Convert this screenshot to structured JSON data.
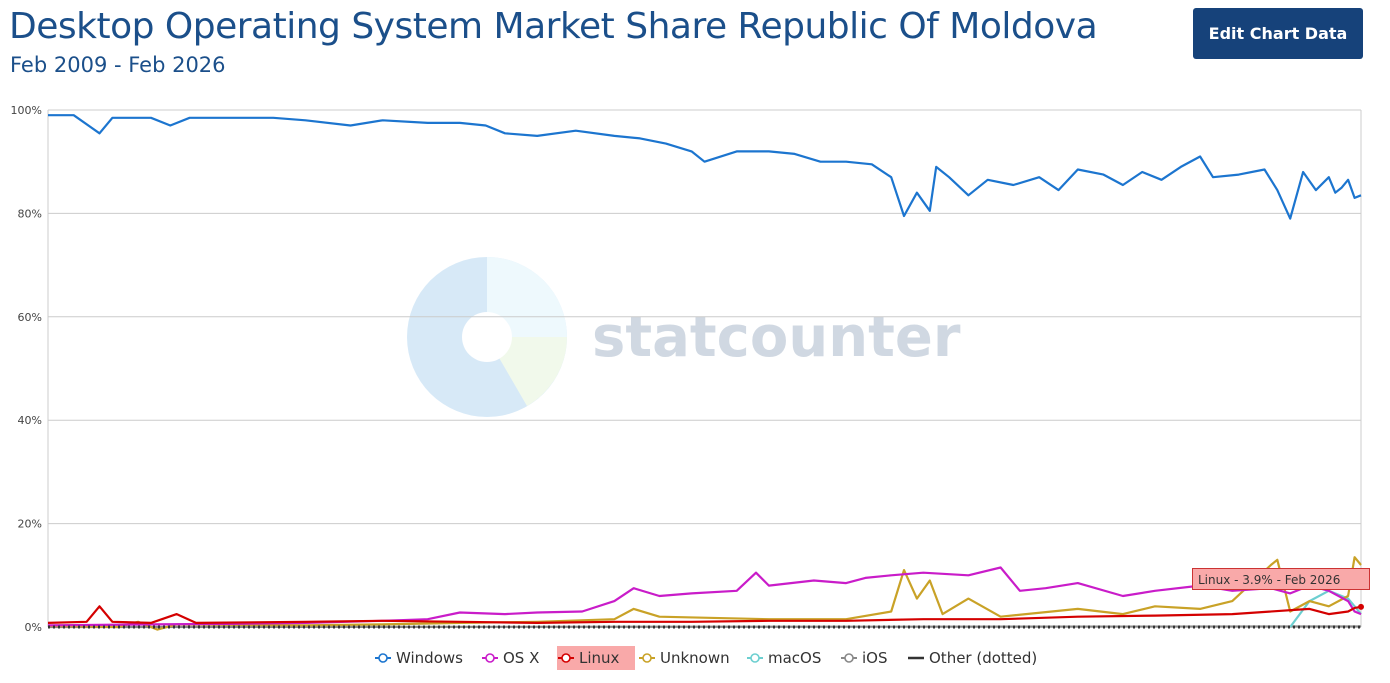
{
  "header": {
    "title": "Desktop Operating System Market Share Republic Of Moldova",
    "subtitle": "Feb 2009 - Feb 2026",
    "edit_button_label": "Edit Chart Data"
  },
  "tooltip": {
    "text": "Linux - 3.9% - Feb 2026"
  },
  "watermark": {
    "text": "statcounter"
  },
  "colors": {
    "windows": "#1c75cf",
    "osx": "#c91cc9",
    "linux": "#d40000",
    "unknown": "#c9a227",
    "macos": "#6ccfd0",
    "ios": "#888888",
    "other": "#333333",
    "grid": "#cccccc",
    "title": "#1b4f8a"
  },
  "chart_data": {
    "type": "line",
    "x_start": "2009-02",
    "x_end": "2026-02",
    "ylim": [
      0,
      100
    ],
    "y_ticks": [
      "0%",
      "20%",
      "40%",
      "60%",
      "80%",
      "100%"
    ],
    "grid": true,
    "legend_position": "bottom",
    "highlighted_series": "Linux",
    "series": [
      {
        "name": "Windows",
        "key": "windows",
        "points": [
          [
            "2009-02",
            99
          ],
          [
            "2009-06",
            99
          ],
          [
            "2009-10",
            95.5
          ],
          [
            "2009-12",
            98.5
          ],
          [
            "2010-06",
            98.5
          ],
          [
            "2010-09",
            97
          ],
          [
            "2010-12",
            98.5
          ],
          [
            "2011-06",
            98.5
          ],
          [
            "2012-01",
            98.5
          ],
          [
            "2012-06",
            98
          ],
          [
            "2013-01",
            97
          ],
          [
            "2013-06",
            98
          ],
          [
            "2014-01",
            97.5
          ],
          [
            "2014-06",
            97.5
          ],
          [
            "2014-10",
            97
          ],
          [
            "2015-01",
            95.5
          ],
          [
            "2015-06",
            95
          ],
          [
            "2015-12",
            96
          ],
          [
            "2016-06",
            95
          ],
          [
            "2016-10",
            94.5
          ],
          [
            "2017-02",
            93.5
          ],
          [
            "2017-06",
            92
          ],
          [
            "2017-08",
            90
          ],
          [
            "2018-01",
            92
          ],
          [
            "2018-06",
            92
          ],
          [
            "2018-10",
            91.5
          ],
          [
            "2019-02",
            90
          ],
          [
            "2019-06",
            90
          ],
          [
            "2019-10",
            89.5
          ],
          [
            "2020-01",
            87
          ],
          [
            "2020-03",
            79.5
          ],
          [
            "2020-05",
            84
          ],
          [
            "2020-07",
            80.5
          ],
          [
            "2020-08",
            89
          ],
          [
            "2020-10",
            87
          ],
          [
            "2021-01",
            83.5
          ],
          [
            "2021-04",
            86.5
          ],
          [
            "2021-08",
            85.5
          ],
          [
            "2021-12",
            87
          ],
          [
            "2022-03",
            84.5
          ],
          [
            "2022-06",
            88.5
          ],
          [
            "2022-10",
            87.5
          ],
          [
            "2023-01",
            85.5
          ],
          [
            "2023-04",
            88
          ],
          [
            "2023-07",
            86.5
          ],
          [
            "2023-10",
            89
          ],
          [
            "2024-01",
            91
          ],
          [
            "2024-03",
            87
          ],
          [
            "2024-07",
            87.5
          ],
          [
            "2024-11",
            88.5
          ],
          [
            "2025-01",
            84.5
          ],
          [
            "2025-03",
            79
          ],
          [
            "2025-05",
            88
          ],
          [
            "2025-07",
            84.5
          ],
          [
            "2025-09",
            87
          ],
          [
            "2025-10",
            84
          ],
          [
            "2025-11",
            85
          ],
          [
            "2025-12",
            86.5
          ],
          [
            "2026-01",
            83
          ],
          [
            "2026-02",
            83.5
          ]
        ]
      },
      {
        "name": "OS X",
        "key": "osx",
        "points": [
          [
            "2009-02",
            0.3
          ],
          [
            "2010-06",
            0.5
          ],
          [
            "2011-06",
            0.6
          ],
          [
            "2012-06",
            0.8
          ],
          [
            "2013-06",
            1.2
          ],
          [
            "2014-01",
            1.5
          ],
          [
            "2014-06",
            2.8
          ],
          [
            "2015-01",
            2.5
          ],
          [
            "2015-06",
            2.8
          ],
          [
            "2016-01",
            3
          ],
          [
            "2016-06",
            5
          ],
          [
            "2016-09",
            7.5
          ],
          [
            "2017-01",
            6
          ],
          [
            "2017-06",
            6.5
          ],
          [
            "2018-01",
            7
          ],
          [
            "2018-04",
            10.5
          ],
          [
            "2018-06",
            8
          ],
          [
            "2019-01",
            9
          ],
          [
            "2019-06",
            8.5
          ],
          [
            "2019-09",
            9.5
          ],
          [
            "2020-01",
            10
          ],
          [
            "2020-06",
            10.5
          ],
          [
            "2021-01",
            10
          ],
          [
            "2021-06",
            11.5
          ],
          [
            "2021-09",
            7
          ],
          [
            "2022-01",
            7.5
          ],
          [
            "2022-06",
            8.5
          ],
          [
            "2023-01",
            6
          ],
          [
            "2023-06",
            7
          ],
          [
            "2024-01",
            8
          ],
          [
            "2024-06",
            7
          ],
          [
            "2024-12",
            7.5
          ],
          [
            "2025-03",
            6.5
          ],
          [
            "2025-06",
            8
          ],
          [
            "2025-09",
            7
          ],
          [
            "2025-12",
            5
          ],
          [
            "2026-01",
            3
          ],
          [
            "2026-02",
            2.5
          ]
        ]
      },
      {
        "name": "Linux",
        "key": "linux",
        "points": [
          [
            "2009-02",
            0.8
          ],
          [
            "2009-08",
            1
          ],
          [
            "2009-10",
            4
          ],
          [
            "2009-12",
            1
          ],
          [
            "2010-06",
            0.8
          ],
          [
            "2010-10",
            2.5
          ],
          [
            "2011-01",
            0.8
          ],
          [
            "2012-06",
            1
          ],
          [
            "2013-06",
            1.2
          ],
          [
            "2014-06",
            1
          ],
          [
            "2015-06",
            0.8
          ],
          [
            "2016-06",
            1
          ],
          [
            "2017-06",
            1
          ],
          [
            "2018-06",
            1.2
          ],
          [
            "2019-06",
            1.2
          ],
          [
            "2020-06",
            1.5
          ],
          [
            "2021-06",
            1.5
          ],
          [
            "2022-06",
            2
          ],
          [
            "2023-06",
            2.2
          ],
          [
            "2024-06",
            2.5
          ],
          [
            "2025-06",
            3.5
          ],
          [
            "2025-09",
            2.5
          ],
          [
            "2025-12",
            3
          ],
          [
            "2026-01",
            3.7
          ],
          [
            "2026-02",
            3.9
          ]
        ]
      },
      {
        "name": "Unknown",
        "key": "unknown",
        "points": [
          [
            "2009-02",
            0.2
          ],
          [
            "2010-01",
            0
          ],
          [
            "2010-04",
            1
          ],
          [
            "2010-07",
            -0.5
          ],
          [
            "2010-10",
            0.5
          ],
          [
            "2012-06",
            0.3
          ],
          [
            "2013-06",
            0.5
          ],
          [
            "2014-06",
            0.8
          ],
          [
            "2015-06",
            1
          ],
          [
            "2016-06",
            1.5
          ],
          [
            "2016-09",
            3.5
          ],
          [
            "2017-01",
            2
          ],
          [
            "2018-06",
            1.5
          ],
          [
            "2019-06",
            1.5
          ],
          [
            "2020-01",
            3
          ],
          [
            "2020-03",
            11
          ],
          [
            "2020-05",
            5.5
          ],
          [
            "2020-07",
            9
          ],
          [
            "2020-09",
            2.5
          ],
          [
            "2021-01",
            5.5
          ],
          [
            "2021-06",
            2
          ],
          [
            "2022-06",
            3.5
          ],
          [
            "2023-01",
            2.5
          ],
          [
            "2023-06",
            4
          ],
          [
            "2024-01",
            3.5
          ],
          [
            "2024-06",
            5
          ],
          [
            "2024-12",
            12
          ],
          [
            "2025-01",
            13
          ],
          [
            "2025-03",
            3
          ],
          [
            "2025-06",
            5
          ],
          [
            "2025-09",
            4
          ],
          [
            "2025-12",
            6
          ],
          [
            "2026-01",
            13.5
          ],
          [
            "2026-02",
            12
          ]
        ]
      },
      {
        "name": "macOS",
        "key": "macos",
        "points": [
          [
            "2025-03",
            0
          ],
          [
            "2025-06",
            5
          ],
          [
            "2025-09",
            7
          ],
          [
            "2025-12",
            5.5
          ],
          [
            "2026-01",
            4
          ],
          [
            "2026-02",
            2.5
          ]
        ]
      },
      {
        "name": "iOS",
        "key": "ios",
        "points": [
          [
            "2009-02",
            0
          ],
          [
            "2026-02",
            0.1
          ]
        ]
      },
      {
        "name": "Other (dotted)",
        "key": "other",
        "dotted": true,
        "points": [
          [
            "2009-02",
            0
          ],
          [
            "2026-02",
            0
          ]
        ]
      }
    ]
  }
}
